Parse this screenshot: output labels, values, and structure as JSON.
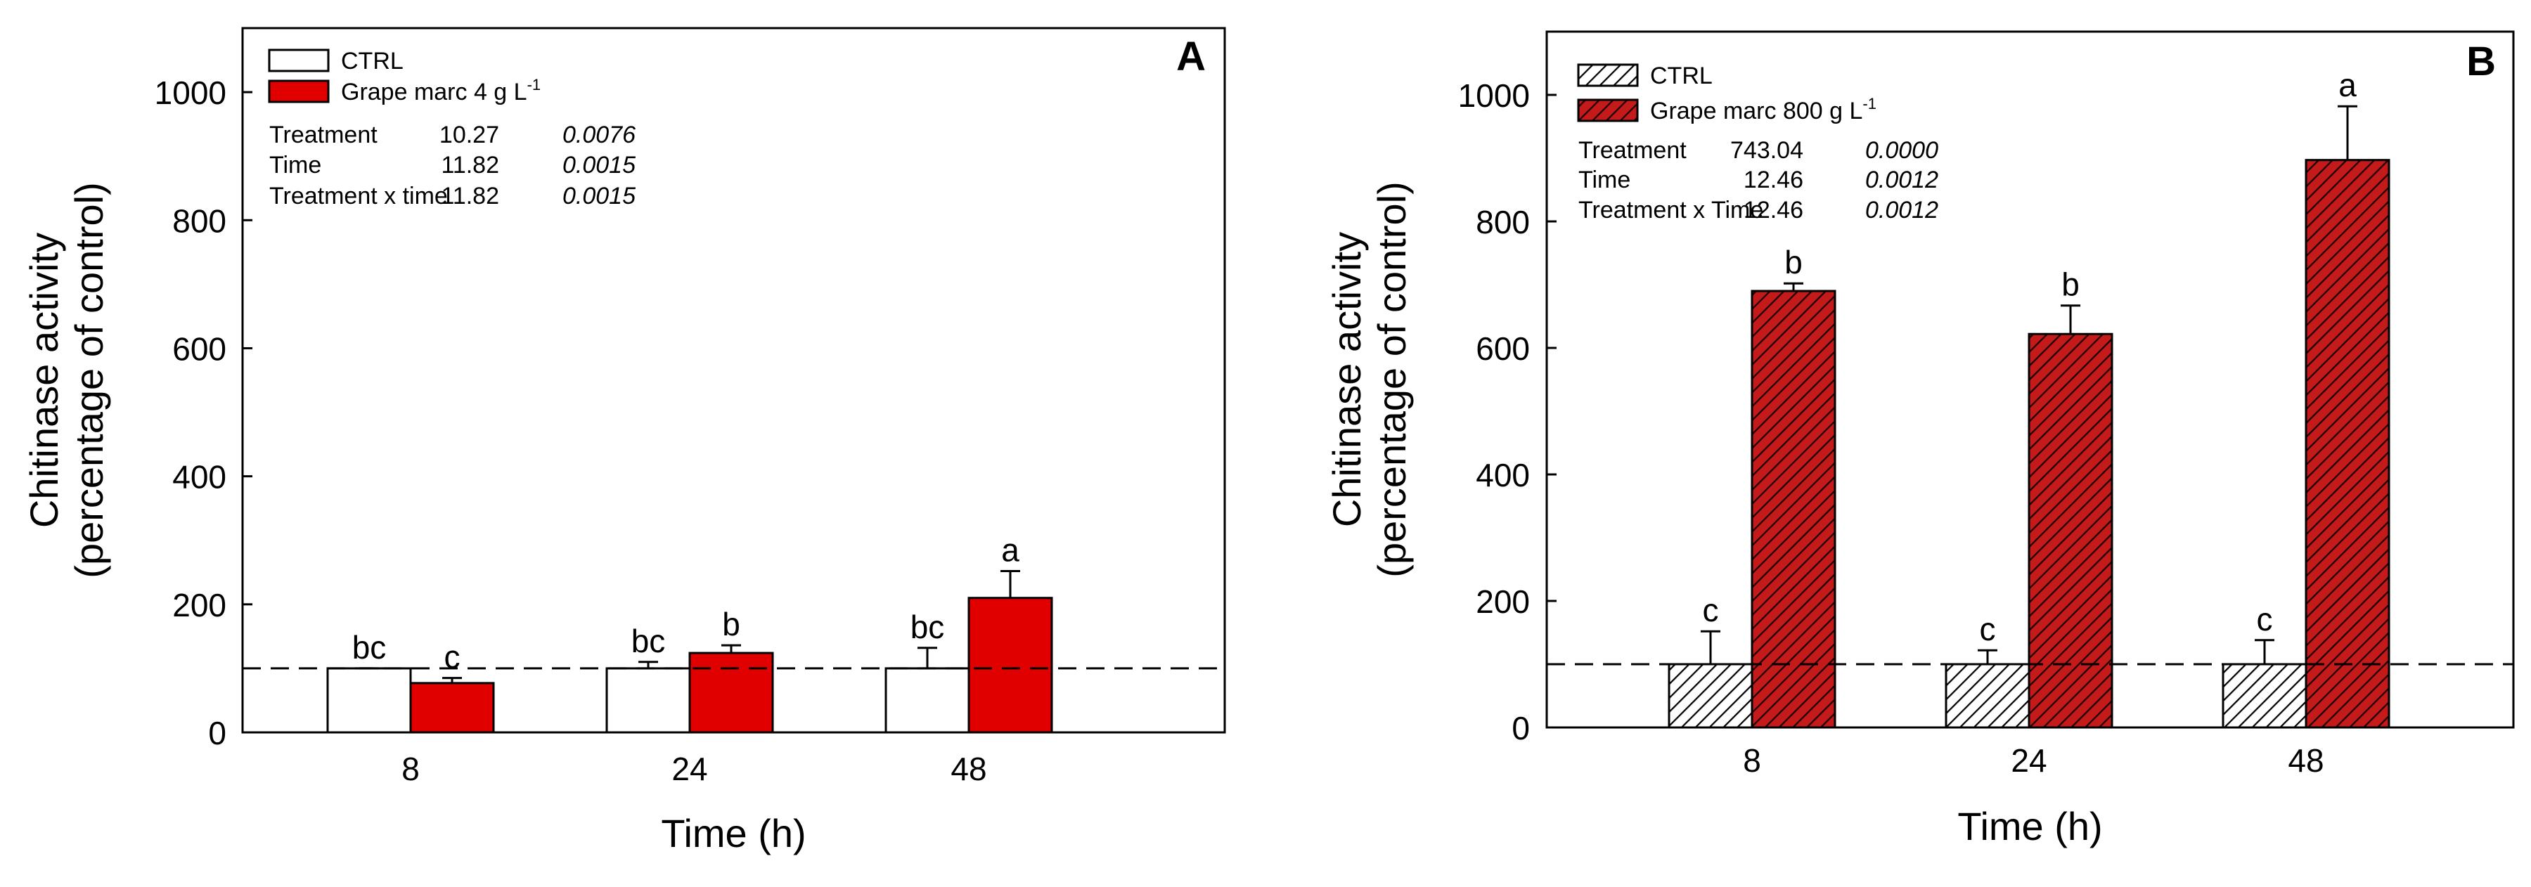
{
  "colors": {
    "ctrl_fill": "#ffffff",
    "grape_fill": "#e10000",
    "grape_hatch_bg": "#c41a1a",
    "ink": "#000000"
  },
  "chart_data": [
    {
      "panel": "A",
      "type": "bar",
      "categories": [
        "8",
        "24",
        "48"
      ],
      "xlabel": "Time (h)",
      "ylabel_line1": "Chitinase activity",
      "ylabel_line2": "(percentage of control)",
      "ylim": [
        0,
        1100
      ],
      "yticks": [
        0,
        200,
        400,
        600,
        800,
        1000
      ],
      "reference_line": 100,
      "series": [
        {
          "name": "CTRL",
          "style": "open",
          "values": [
            100,
            100,
            100
          ],
          "errors": [
            0,
            10,
            32
          ],
          "letters": [
            "bc",
            "bc",
            "bc"
          ]
        },
        {
          "name": "Grape marc 4 g L",
          "name_sup": "-1",
          "style": "solid",
          "values": [
            77,
            124,
            210
          ],
          "errors": [
            8,
            12,
            42
          ],
          "letters": [
            "c",
            "b",
            "a"
          ]
        }
      ],
      "stats": [
        {
          "label": "Treatment",
          "f": "10.27",
          "p": "0.0076"
        },
        {
          "label": "Time",
          "f": "11.82",
          "p": "0.0015"
        },
        {
          "label": "Treatment x time",
          "f": "11.82",
          "p": "0.0015"
        }
      ]
    },
    {
      "panel": "B",
      "type": "bar",
      "categories": [
        "8",
        "24",
        "48"
      ],
      "xlabel": "Time (h)",
      "ylabel_line1": "Chitinase activity",
      "ylabel_line2": "(percentage of control)",
      "ylim": [
        0,
        1100
      ],
      "yticks": [
        0,
        200,
        400,
        600,
        800,
        1000
      ],
      "reference_line": 100,
      "series": [
        {
          "name": "CTRL",
          "style": "hatched-light",
          "values": [
            100,
            100,
            100
          ],
          "errors": [
            52,
            22,
            38
          ],
          "letters": [
            "c",
            "c",
            "c"
          ]
        },
        {
          "name": "Grape marc 800 g L",
          "name_sup": "-1",
          "style": "hatched-red",
          "values": [
            690,
            622,
            897
          ],
          "errors": [
            12,
            45,
            85
          ],
          "letters": [
            "b",
            "b",
            "a"
          ]
        }
      ],
      "stats": [
        {
          "label": "Treatment",
          "f": "743.04",
          "p": "0.0000"
        },
        {
          "label": "Time",
          "f": "12.46",
          "p": "0.0012"
        },
        {
          "label": "Treatment x Time",
          "f": "12.46",
          "p": "0.0012"
        }
      ]
    }
  ]
}
